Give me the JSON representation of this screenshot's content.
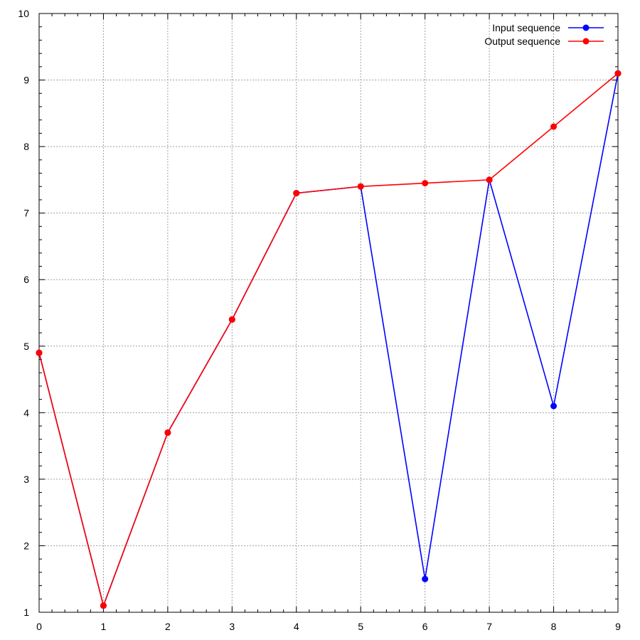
{
  "chart_data": {
    "type": "line",
    "x": [
      0,
      1,
      2,
      3,
      4,
      5,
      6,
      7,
      8,
      9
    ],
    "xlim": [
      0,
      9
    ],
    "ylim": [
      1,
      10
    ],
    "xticks": [
      0,
      1,
      2,
      3,
      4,
      5,
      6,
      7,
      8,
      9
    ],
    "yticks": [
      1,
      2,
      3,
      4,
      5,
      6,
      7,
      8,
      9,
      10
    ],
    "grid": true,
    "legend_position": "top-right",
    "series": [
      {
        "name": "Input sequence",
        "color": "#0000ff",
        "values": [
          4.9,
          1.1,
          3.7,
          5.4,
          7.3,
          7.4,
          1.5,
          7.5,
          4.1,
          9.1
        ]
      },
      {
        "name": "Output sequence",
        "color": "#ff0000",
        "values": [
          4.9,
          1.1,
          3.7,
          5.4,
          7.3,
          7.4,
          7.45,
          7.5,
          8.3,
          9.1
        ]
      }
    ]
  }
}
